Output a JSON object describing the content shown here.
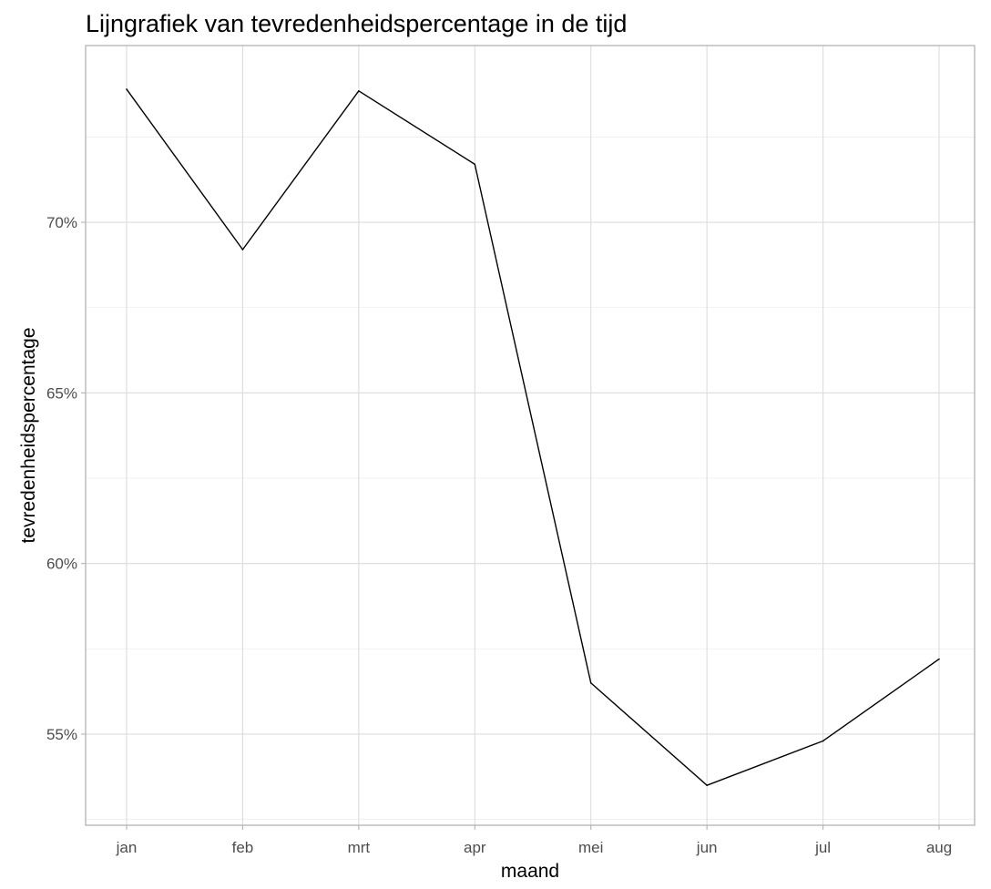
{
  "chart_data": {
    "type": "line",
    "title": "Lijngrafiek van tevredenheidspercentage in de tijd",
    "xlabel": "maand",
    "ylabel": "tevredenheidspercentage",
    "categories": [
      "jan",
      "feb",
      "mrt",
      "apr",
      "mei",
      "jun",
      "jul",
      "aug"
    ],
    "values": [
      73.9,
      69.2,
      73.85,
      71.7,
      56.5,
      53.5,
      54.8,
      57.2
    ],
    "yticks": [
      55,
      60,
      65,
      70
    ],
    "ytick_labels": [
      "55%",
      "60%",
      "65%",
      "70%"
    ],
    "ylim": [
      52.33,
      75.18
    ],
    "grid": true,
    "legend": "none"
  }
}
